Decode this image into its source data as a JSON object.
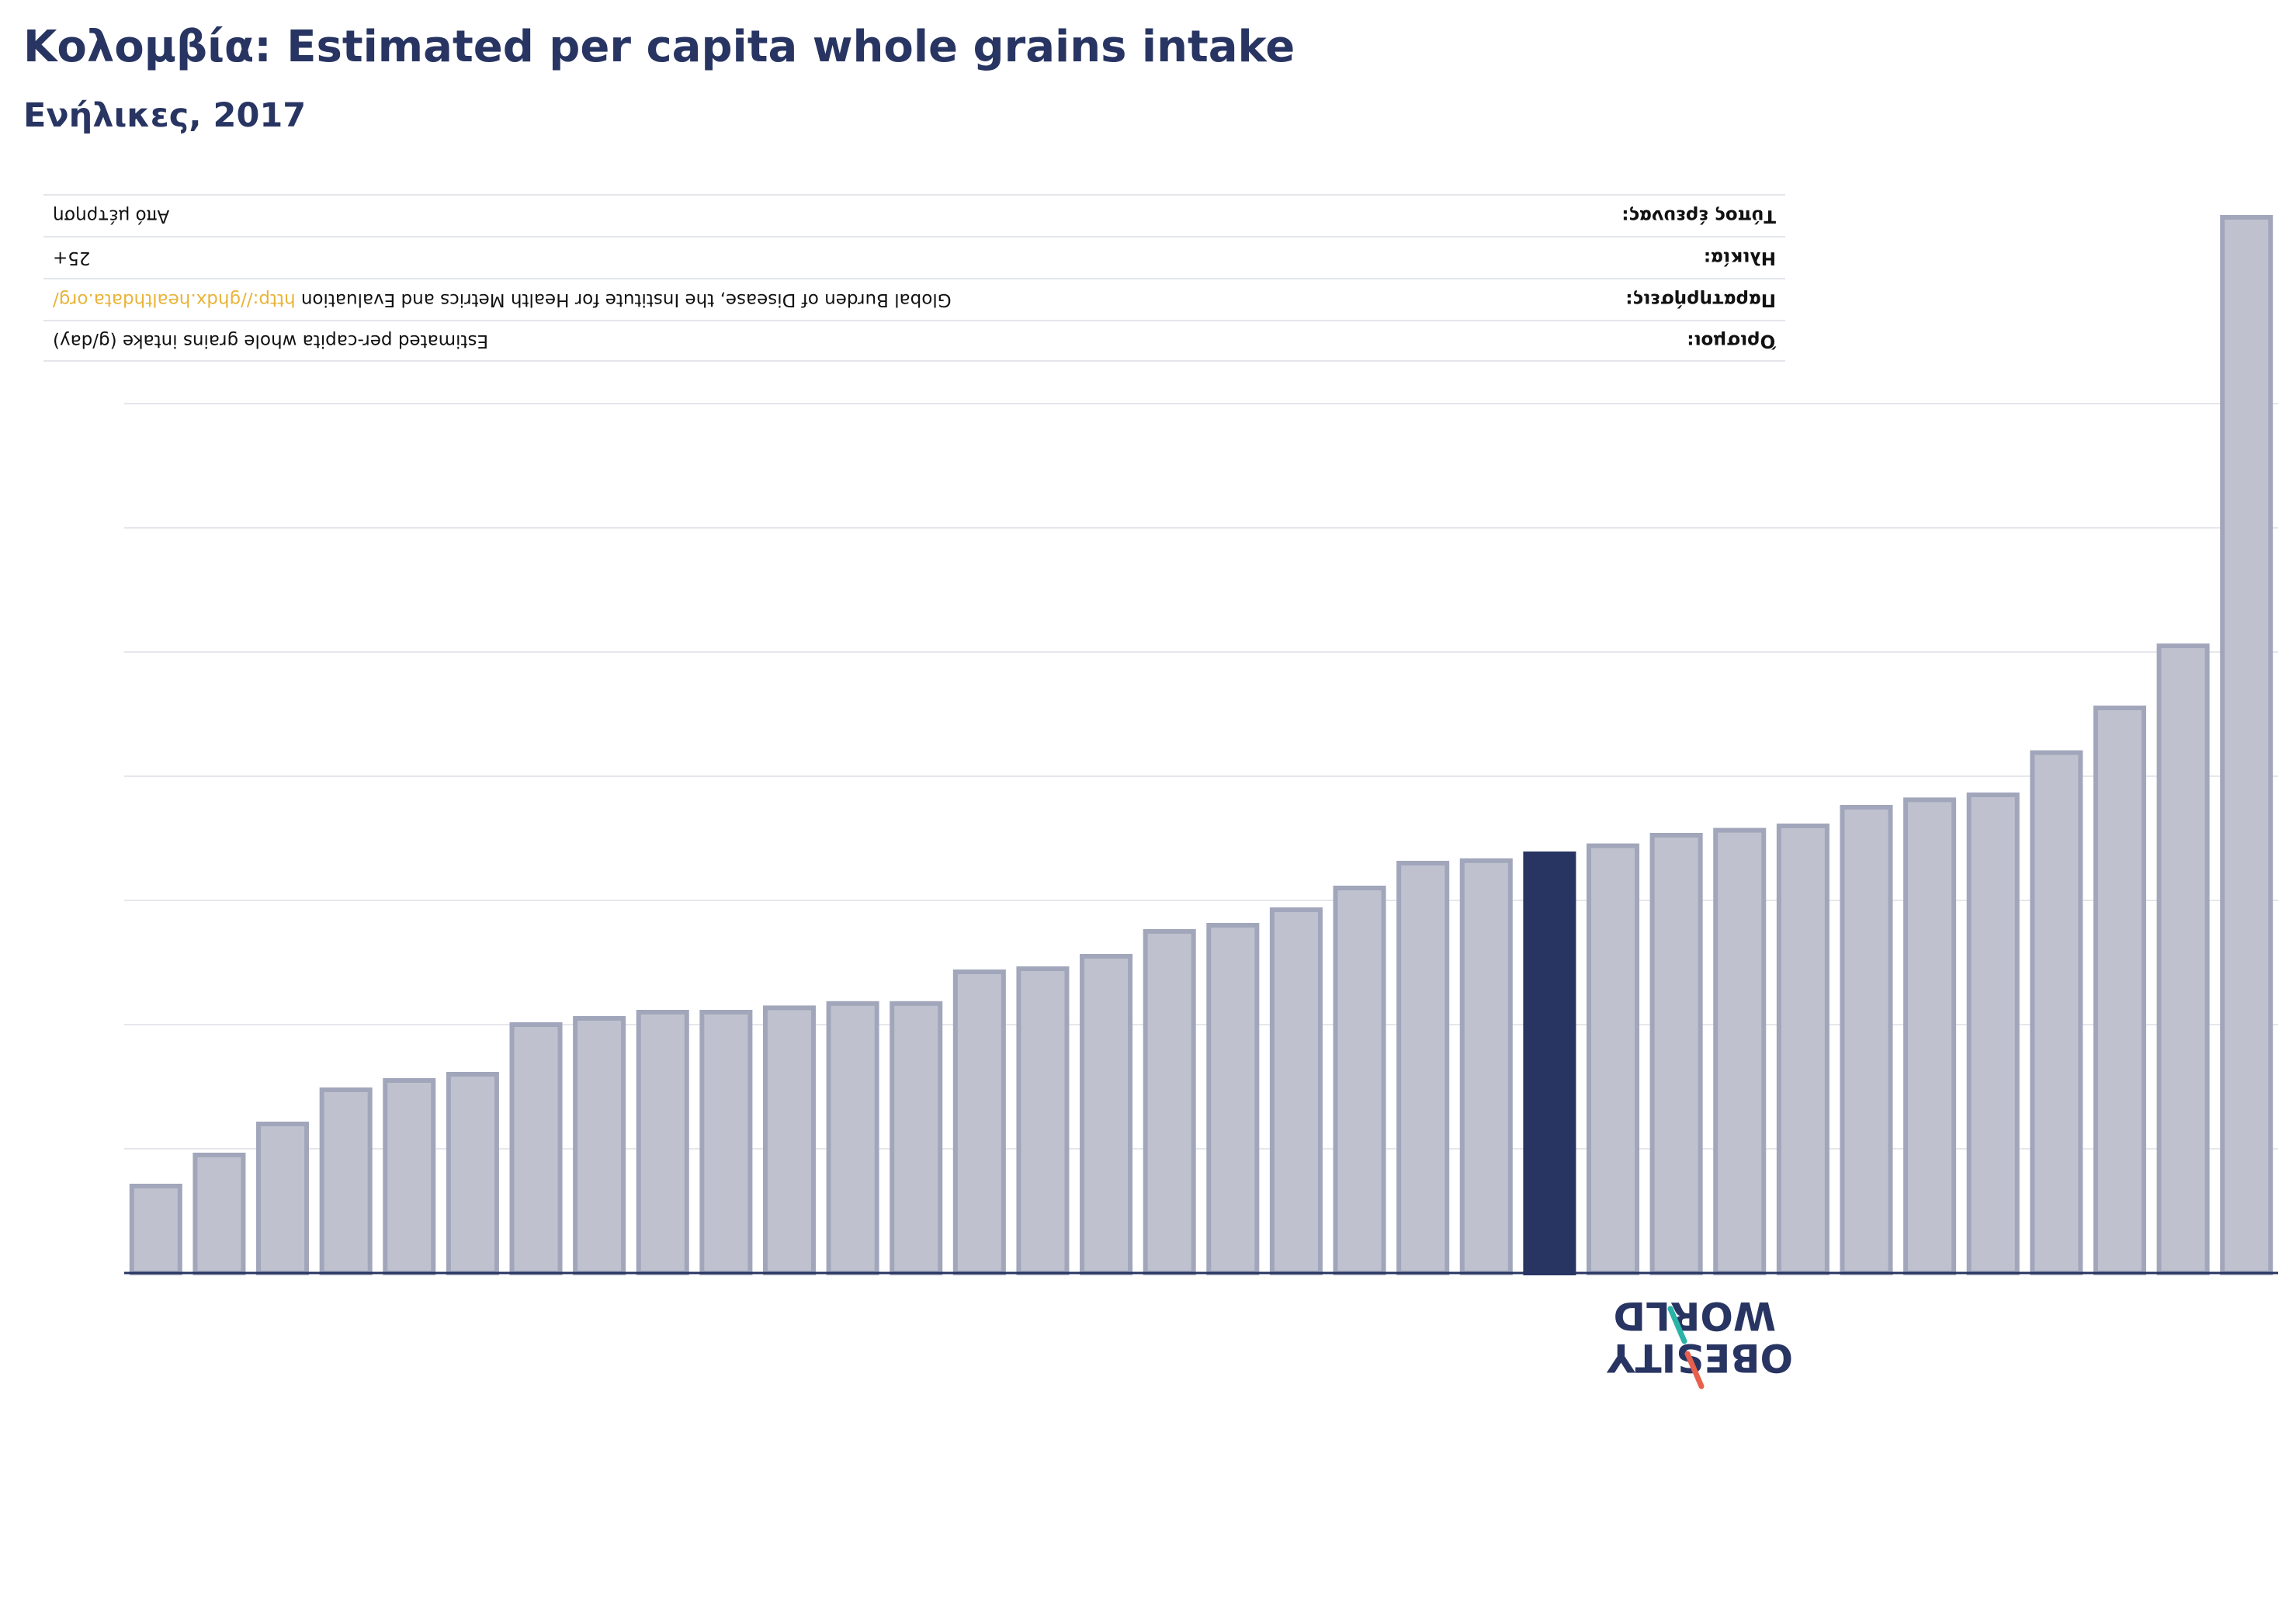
{
  "header": {
    "title": "Κολομβία: Estimated per capita whole grains intake",
    "subtitle": "Ενήλικες, 2017"
  },
  "meta": {
    "rows": [
      {
        "label": "Όρισμοι:",
        "value": "Estimated per-capita whole grains intake (g/day)",
        "link": ""
      },
      {
        "label": "Παρατηρήσεις:",
        "value": "Global Burden of Disease, the Institute for Health Metrics and Evaluation",
        "link": "http://ghdx.healthdata.org/"
      },
      {
        "label": "Ηλικία:",
        "value": "25+",
        "link": ""
      },
      {
        "label": "Τύπος έρευνας:",
        "value": "Από μέτρηση",
        "link": ""
      }
    ]
  },
  "logo": {
    "line1": "OBESITY",
    "line2": "WORLD"
  },
  "colors": {
    "bar": "#bfc2ce",
    "bar_stroke": "#a1a6bb",
    "highlight": "#283562",
    "grid": "#e6e7ec",
    "axis": "#283562",
    "logo_red": "#e8604c",
    "logo_teal": "#2ab3a6"
  },
  "chart_data": {
    "type": "bar",
    "title": "Κολομβία: Estimated per capita whole grains intake",
    "subtitle": "Ενήλικες, 2017",
    "values": [
      14,
      19,
      24,
      29.5,
      31,
      32,
      40,
      41,
      42,
      42,
      42.7,
      43.4,
      43.4,
      48.5,
      49,
      51,
      55,
      56,
      58.5,
      62,
      66,
      66.4,
      67.5,
      68.8,
      70.5,
      71.3,
      72,
      75,
      76.2,
      77,
      83.8,
      91,
      101,
      170
    ],
    "highlight_index": 22,
    "ylim": [
      0,
      170
    ],
    "grid": true,
    "gridlines": [
      20,
      40,
      60,
      80,
      100,
      120,
      140
    ]
  }
}
